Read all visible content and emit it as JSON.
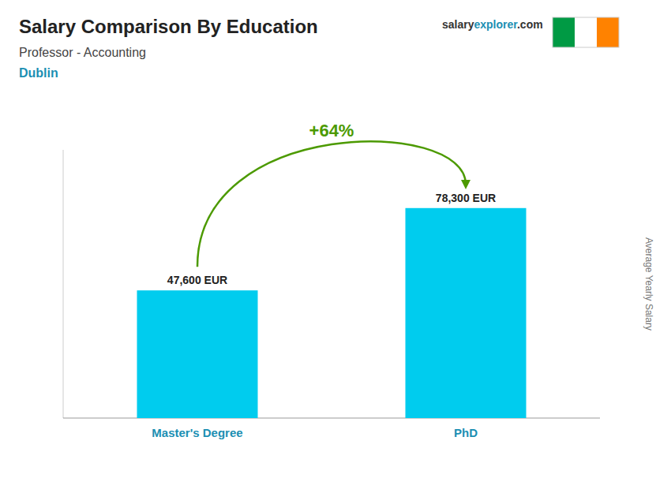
{
  "chart_data": {
    "type": "bar",
    "title": "Salary Comparison By Education",
    "subtitle": "Professor - Accounting",
    "location": "Dublin",
    "source": [
      "salary",
      "explorer",
      ".com"
    ],
    "ylabel": "Average Yearly Salary",
    "categories": [
      "Master's Degree",
      "PhD"
    ],
    "values": [
      47600,
      78300
    ],
    "value_labels": [
      "47,600 EUR",
      "78,300 EUR"
    ],
    "data_labels": true,
    "annotation": "+64%",
    "color": "#00CCEE",
    "ylim": [
      0,
      100000
    ],
    "tick_labels": false,
    "grid": false
  }
}
